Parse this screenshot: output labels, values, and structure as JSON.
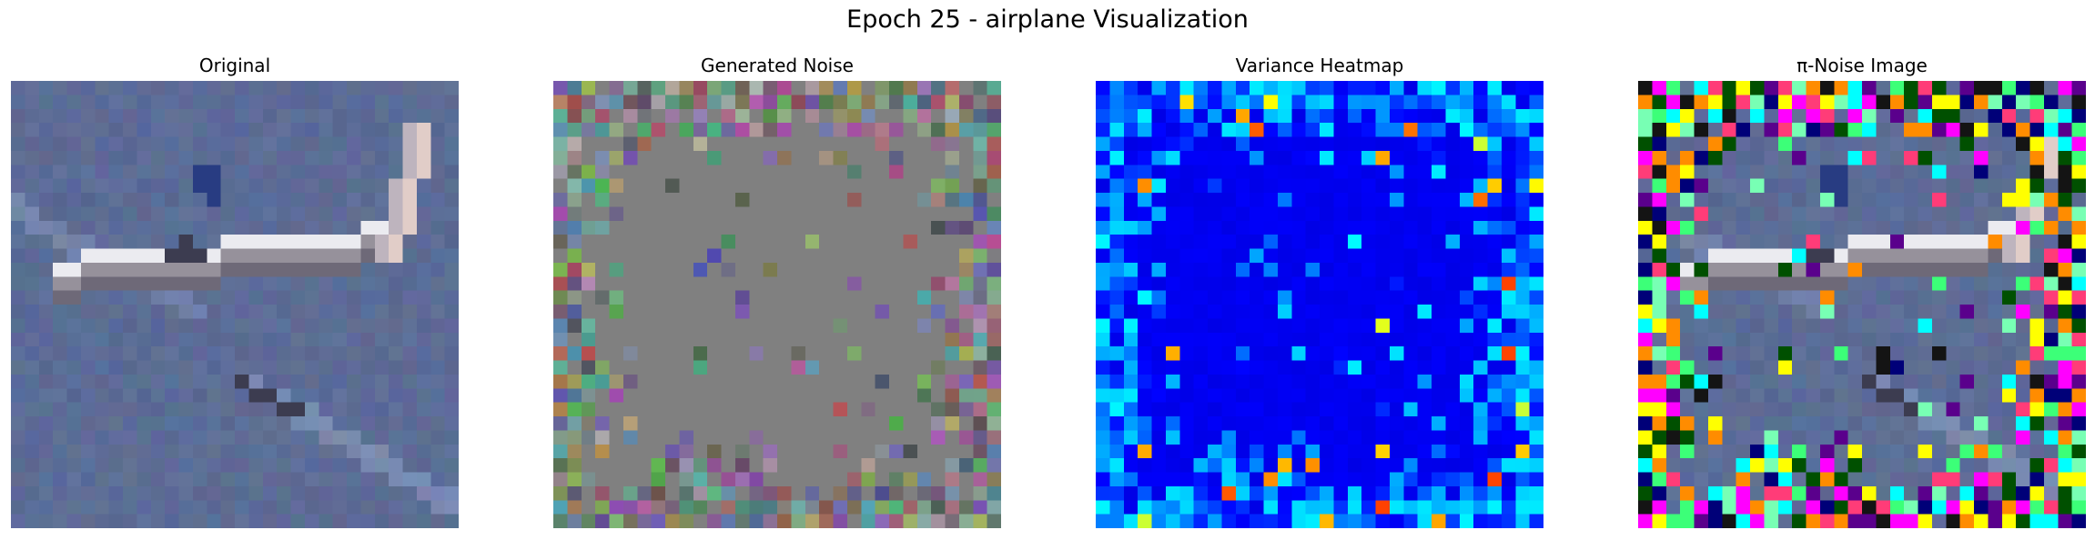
{
  "figure": {
    "title": "Epoch 25 - airplane Visualization"
  },
  "panels": [
    {
      "title": "Original",
      "content": "cifar-airplane-photo"
    },
    {
      "title": "Generated Noise",
      "content": "gray-noise-with-colored-border-patches"
    },
    {
      "title": "Variance Heatmap",
      "content": "jet-colormap-variance-grid"
    },
    {
      "title": "π-Noise Image",
      "content": "airplane-with-saturated-noise-border"
    }
  ],
  "colors": {
    "sky_blue": "#5f6e98",
    "noise_gray": "#808080",
    "heatmap_dark": "#00007f",
    "heatmap_blue": "#0000ff"
  }
}
